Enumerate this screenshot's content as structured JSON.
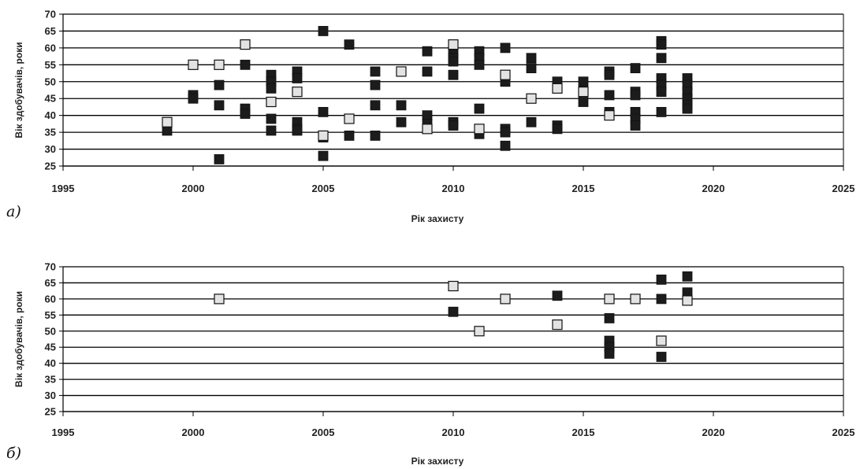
{
  "colors": {
    "dark_marker": "#1c1c1c",
    "light_marker": "#e3e3e3",
    "marker_stroke": "#111111",
    "grid": "#000000"
  },
  "chart_data": [
    {
      "type": "scatter",
      "panel_label": "а)",
      "xlabel": "Рік захисту",
      "ylabel": "Вік здобувачів, роки",
      "xlim": [
        1995,
        2025
      ],
      "ylim": [
        25,
        70
      ],
      "x_ticks": [
        "1995",
        "2000",
        "2005",
        "2010",
        "2015",
        "2020",
        "2025"
      ],
      "y_ticks": [
        "25",
        "30",
        "35",
        "40",
        "45",
        "50",
        "55",
        "60",
        "65",
        "70"
      ],
      "grid": "horizontal",
      "legend": "none",
      "series": [
        {
          "marker": "filled-dark-square",
          "points": [
            [
              1999,
              35.5
            ],
            [
              2000,
              46
            ],
            [
              2000,
              45
            ],
            [
              2001,
              49
            ],
            [
              2001,
              43
            ],
            [
              2001,
              27
            ],
            [
              2002,
              55
            ],
            [
              2002,
              42
            ],
            [
              2002,
              40.5
            ],
            [
              2003,
              52
            ],
            [
              2003,
              50
            ],
            [
              2003,
              48
            ],
            [
              2003,
              39
            ],
            [
              2003,
              35.5
            ],
            [
              2004,
              53
            ],
            [
              2004,
              51
            ],
            [
              2004,
              38
            ],
            [
              2004,
              36
            ],
            [
              2004,
              35.5
            ],
            [
              2005,
              65
            ],
            [
              2005,
              41
            ],
            [
              2005,
              33.5
            ],
            [
              2005,
              28
            ],
            [
              2006,
              61
            ],
            [
              2006,
              34
            ],
            [
              2007,
              53
            ],
            [
              2007,
              49
            ],
            [
              2007,
              43
            ],
            [
              2007,
              34
            ],
            [
              2008,
              43
            ],
            [
              2008,
              38
            ],
            [
              2009,
              59
            ],
            [
              2009,
              53
            ],
            [
              2009,
              40
            ],
            [
              2009,
              37.5
            ],
            [
              2010,
              59
            ],
            [
              2010,
              57
            ],
            [
              2010,
              56
            ],
            [
              2010,
              52
            ],
            [
              2010,
              38
            ],
            [
              2010,
              37
            ],
            [
              2011,
              59
            ],
            [
              2011,
              57
            ],
            [
              2011,
              55
            ],
            [
              2011,
              42
            ],
            [
              2011,
              34.5
            ],
            [
              2012,
              60
            ],
            [
              2012,
              50
            ],
            [
              2012,
              36
            ],
            [
              2012,
              35
            ],
            [
              2012,
              31
            ],
            [
              2013,
              57
            ],
            [
              2013,
              54
            ],
            [
              2013,
              38
            ],
            [
              2014,
              50
            ],
            [
              2014,
              37
            ],
            [
              2014,
              36
            ],
            [
              2015,
              50
            ],
            [
              2015,
              44
            ],
            [
              2016,
              53
            ],
            [
              2016,
              52
            ],
            [
              2016,
              46
            ],
            [
              2016,
              41
            ],
            [
              2017,
              54
            ],
            [
              2017,
              47
            ],
            [
              2017,
              46
            ],
            [
              2017,
              41
            ],
            [
              2017,
              39
            ],
            [
              2017,
              37
            ],
            [
              2018,
              62
            ],
            [
              2018,
              61
            ],
            [
              2018,
              57
            ],
            [
              2018,
              51
            ],
            [
              2018,
              49
            ],
            [
              2018,
              47
            ],
            [
              2018,
              41
            ],
            [
              2019,
              51
            ],
            [
              2019,
              49
            ],
            [
              2019,
              47
            ],
            [
              2019,
              45
            ],
            [
              2019,
              43
            ],
            [
              2019,
              42
            ]
          ]
        },
        {
          "marker": "light-grey-square",
          "points": [
            [
              1999,
              38
            ],
            [
              2000,
              55
            ],
            [
              2001,
              55
            ],
            [
              2002,
              61
            ],
            [
              2003,
              44
            ],
            [
              2004,
              47
            ],
            [
              2005,
              34
            ],
            [
              2006,
              39
            ],
            [
              2008,
              53
            ],
            [
              2009,
              36
            ],
            [
              2010,
              61
            ],
            [
              2011,
              36
            ],
            [
              2012,
              52
            ],
            [
              2013,
              45
            ],
            [
              2014,
              48
            ],
            [
              2015,
              47
            ],
            [
              2016,
              40
            ]
          ]
        }
      ]
    },
    {
      "type": "scatter",
      "panel_label": "б)",
      "xlabel": "Рік захисту",
      "ylabel": "Вік здобувачів, роки",
      "xlim": [
        1995,
        2025
      ],
      "ylim": [
        25,
        70
      ],
      "x_ticks": [
        "1995",
        "2000",
        "2005",
        "2010",
        "2015",
        "2020",
        "2025"
      ],
      "y_ticks": [
        "25",
        "30",
        "35",
        "40",
        "45",
        "50",
        "55",
        "60",
        "65",
        "70"
      ],
      "grid": "horizontal",
      "legend": "none",
      "series": [
        {
          "marker": "filled-dark-square",
          "points": [
            [
              2010,
              56
            ],
            [
              2014,
              61
            ],
            [
              2016,
              54
            ],
            [
              2016,
              47
            ],
            [
              2016,
              45
            ],
            [
              2016,
              43
            ],
            [
              2018,
              66
            ],
            [
              2018,
              60
            ],
            [
              2018,
              42
            ],
            [
              2019,
              67
            ],
            [
              2019,
              62
            ]
          ]
        },
        {
          "marker": "light-grey-square",
          "points": [
            [
              2001,
              60
            ],
            [
              2010,
              64
            ],
            [
              2011,
              50
            ],
            [
              2012,
              60
            ],
            [
              2014,
              52
            ],
            [
              2016,
              60
            ],
            [
              2017,
              60
            ],
            [
              2018,
              47
            ],
            [
              2019,
              59.5
            ]
          ]
        }
      ]
    }
  ]
}
